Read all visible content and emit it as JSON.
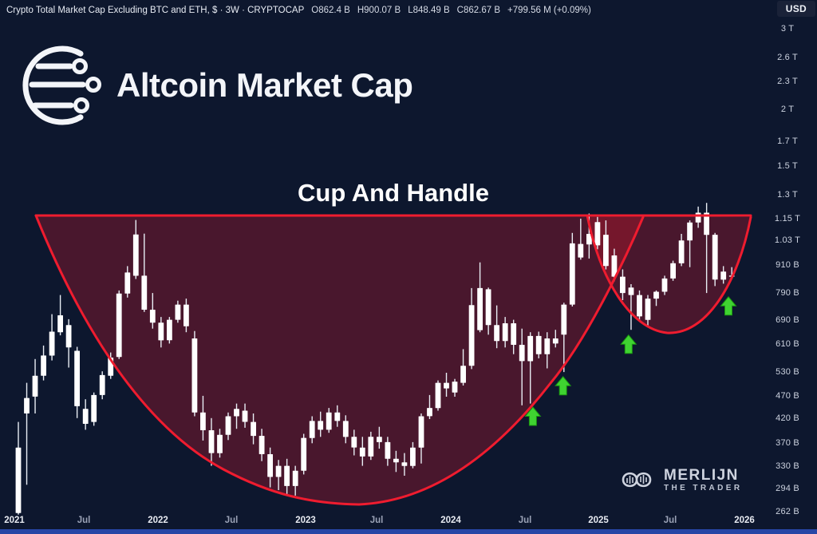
{
  "header": {
    "symbol_title": "Crypto Total Market Cap Excluding BTC and ETH, $ · 3W · CRYPTOCAP",
    "ohlc": [
      "O862.4 B",
      "H900.07 B",
      "L848.49 B",
      "C862.67 B",
      "+799.56 M (+0.09%)"
    ],
    "currency_button": "USD"
  },
  "branding": {
    "logo_text": "Altcoin Market Cap"
  },
  "watermark": {
    "line1": "MERLIJN",
    "line2": "THE TRADER"
  },
  "chart_data": {
    "type": "candlestick",
    "title": "Cup And Handle",
    "symbol": "CRYPTOCAP — Crypto Total Market Cap Excluding BTC and ETH",
    "interval": "3W",
    "currency": "USD",
    "scale": "logarithmic",
    "legend_position": "none",
    "grid": false,
    "y_axis": {
      "unit": "USD billions",
      "ticks": [
        {
          "label": "3 T",
          "value": 3000
        },
        {
          "label": "2.6 T",
          "value": 2600
        },
        {
          "label": "2.3 T",
          "value": 2300
        },
        {
          "label": "2 T",
          "value": 2000
        },
        {
          "label": "1.7 T",
          "value": 1700
        },
        {
          "label": "1.5 T",
          "value": 1500
        },
        {
          "label": "1.3 T",
          "value": 1300
        },
        {
          "label": "1.15 T",
          "value": 1150
        },
        {
          "label": "1.03 T",
          "value": 1030
        },
        {
          "label": "910 B",
          "value": 910
        },
        {
          "label": "790 B",
          "value": 790
        },
        {
          "label": "690 B",
          "value": 690
        },
        {
          "label": "610 B",
          "value": 610
        },
        {
          "label": "530 B",
          "value": 530
        },
        {
          "label": "470 B",
          "value": 470
        },
        {
          "label": "420 B",
          "value": 420
        },
        {
          "label": "370 B",
          "value": 370
        },
        {
          "label": "330 B",
          "value": 330
        },
        {
          "label": "294 B",
          "value": 294
        },
        {
          "label": "262 B",
          "value": 262
        }
      ]
    },
    "x_axis": {
      "ticks": [
        {
          "label": "2021",
          "major": true
        },
        {
          "label": "Jul",
          "major": false
        },
        {
          "label": "2022",
          "major": true
        },
        {
          "label": "Jul",
          "major": false
        },
        {
          "label": "2023",
          "major": true
        },
        {
          "label": "Jul",
          "major": false
        },
        {
          "label": "2024",
          "major": true
        },
        {
          "label": "Jul",
          "major": false
        },
        {
          "label": "2025",
          "major": true
        },
        {
          "label": "Jul",
          "major": false
        },
        {
          "label": "2026",
          "major": true
        }
      ]
    },
    "candles_ohlc_billions": [
      [
        260,
        412,
        258,
        362
      ],
      [
        430,
        502,
        300,
        465
      ],
      [
        468,
        566,
        430,
        520
      ],
      [
        520,
        606,
        508,
        576
      ],
      [
        576,
        710,
        562,
        650
      ],
      [
        648,
        782,
        638,
        706
      ],
      [
        672,
        692,
        542,
        600
      ],
      [
        590,
        602,
        420,
        446
      ],
      [
        408,
        462,
        396,
        440
      ],
      [
        412,
        478,
        404,
        472
      ],
      [
        472,
        532,
        462,
        522
      ],
      [
        520,
        585,
        512,
        570
      ],
      [
        572,
        800,
        566,
        788
      ],
      [
        788,
        905,
        772,
        876
      ],
      [
        862,
        1142,
        848,
        1062
      ],
      [
        862,
        1066,
        718,
        726
      ],
      [
        726,
        790,
        660,
        680
      ],
      [
        680,
        700,
        600,
        622
      ],
      [
        622,
        700,
        612,
        690
      ],
      [
        690,
        760,
        680,
        745
      ],
      [
        745,
        768,
        648,
        668
      ],
      [
        628,
        652,
        424,
        432
      ],
      [
        432,
        470,
        375,
        395
      ],
      [
        395,
        420,
        330,
        352
      ],
      [
        352,
        398,
        344,
        386
      ],
      [
        386,
        432,
        376,
        424
      ],
      [
        424,
        452,
        398,
        440
      ],
      [
        436,
        452,
        400,
        412
      ],
      [
        412,
        430,
        368,
        384
      ],
      [
        384,
        398,
        338,
        350
      ],
      [
        350,
        362,
        296,
        312
      ],
      [
        312,
        340,
        292,
        330
      ],
      [
        330,
        342,
        286,
        298
      ],
      [
        298,
        330,
        284,
        322
      ],
      [
        322,
        388,
        316,
        380
      ],
      [
        380,
        424,
        370,
        414
      ],
      [
        414,
        434,
        382,
        396
      ],
      [
        396,
        442,
        390,
        432
      ],
      [
        432,
        448,
        402,
        414
      ],
      [
        414,
        426,
        370,
        382
      ],
      [
        382,
        396,
        348,
        362
      ],
      [
        362,
        382,
        330,
        346
      ],
      [
        346,
        392,
        340,
        382
      ],
      [
        382,
        402,
        360,
        372
      ],
      [
        372,
        382,
        330,
        342
      ],
      [
        342,
        356,
        320,
        336
      ],
      [
        336,
        352,
        314,
        330
      ],
      [
        330,
        372,
        326,
        362
      ],
      [
        362,
        430,
        334,
        424
      ],
      [
        424,
        472,
        418,
        442
      ],
      [
        442,
        508,
        436,
        502
      ],
      [
        502,
        528,
        468,
        488
      ],
      [
        478,
        512,
        468,
        505
      ],
      [
        502,
        595,
        495,
        547
      ],
      [
        547,
        810,
        538,
        743
      ],
      [
        655,
        922,
        648,
        810
      ],
      [
        805,
        812,
        640,
        672
      ],
      [
        672,
        742,
        598,
        620
      ],
      [
        620,
        700,
        600,
        678
      ],
      [
        678,
        690,
        580,
        608
      ],
      [
        608,
        660,
        448,
        560
      ],
      [
        560,
        648,
        452,
        636
      ],
      [
        636,
        650,
        568,
        580
      ],
      [
        580,
        648,
        540,
        628
      ],
      [
        628,
        656,
        600,
        612
      ],
      [
        640,
        752,
        530,
        745
      ],
      [
        745,
        1070,
        738,
        1015
      ],
      [
        945,
        1150,
        935,
        1012
      ],
      [
        1010,
        1180,
        940,
        1065
      ],
      [
        1005,
        1160,
        985,
        1130
      ],
      [
        1060,
        1140,
        890,
        905
      ],
      [
        955,
        988,
        838,
        858
      ],
      [
        858,
        890,
        762,
        790
      ],
      [
        812,
        826,
        656,
        782
      ],
      [
        782,
        800,
        688,
        702
      ],
      [
        690,
        782,
        668,
        768
      ],
      [
        768,
        800,
        740,
        795
      ],
      [
        795,
        862,
        782,
        850
      ],
      [
        850,
        930,
        840,
        918
      ],
      [
        918,
        1065,
        905,
        1030
      ],
      [
        1030,
        1140,
        900,
        1128
      ],
      [
        1128,
        1222,
        1098,
        1185
      ],
      [
        1185,
        1245,
        790,
        1060
      ],
      [
        1060,
        1070,
        818,
        845
      ],
      [
        845,
        905,
        828,
        880
      ],
      [
        862.4,
        900.07,
        848.49,
        862.67
      ]
    ],
    "annotations": {
      "pattern": "Cup And Handle",
      "arrows_up": [
        {
          "index": 61.3,
          "value_billions": 444
        },
        {
          "index": 64.9,
          "value_billions": 518
        },
        {
          "index": 72.7,
          "value_billions": 639
        },
        {
          "index": 84.6,
          "value_billions": 775
        }
      ]
    },
    "colors": {
      "background": "#0d172e",
      "candle_body": "#ffffff",
      "candle_wick": "#e9eef5",
      "pattern_line": "#ef1c2f",
      "pattern_fill": "rgba(237,26,45,0.27)",
      "arrow_green": "#3fd331",
      "arrow_green_edge": "#1b9a10",
      "axis_text": "#ccd2df",
      "bottom_strip": "#2746a6"
    }
  }
}
